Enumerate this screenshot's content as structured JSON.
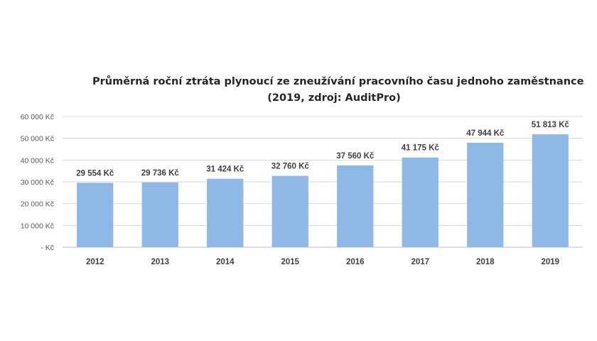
{
  "chart_data": {
    "type": "bar",
    "title_line1": "Průměrná roční ztráta plynoucí ze zneužívání pracovního času jednoho zaměstnance",
    "title_line2": "(2019, zdroj: AuditPro)",
    "categories": [
      "2012",
      "2013",
      "2014",
      "2015",
      "2016",
      "2017",
      "2018",
      "2019"
    ],
    "values": [
      29554,
      29736,
      31424,
      32760,
      37560,
      41175,
      47944,
      51813
    ],
    "data_labels": [
      "29 554 Kč",
      "29 736 Kč",
      "31 424 Kč",
      "32 760 Kč",
      "37 560 Kč",
      "41 175 Kč",
      "47 944 Kč",
      "51 813 Kč"
    ],
    "y_ticks": [
      0,
      10000,
      20000,
      30000,
      40000,
      50000,
      60000
    ],
    "y_tick_labels": [
      "-   Kč",
      "10 000 Kč",
      "20 000 Kč",
      "30 000 Kč",
      "40 000 Kč",
      "50 000 Kč",
      "60 000 Kč"
    ],
    "ylim": [
      0,
      60000
    ],
    "grid": true,
    "bar_color": "#8eb8e5",
    "grid_color": "#d9d9d9"
  }
}
